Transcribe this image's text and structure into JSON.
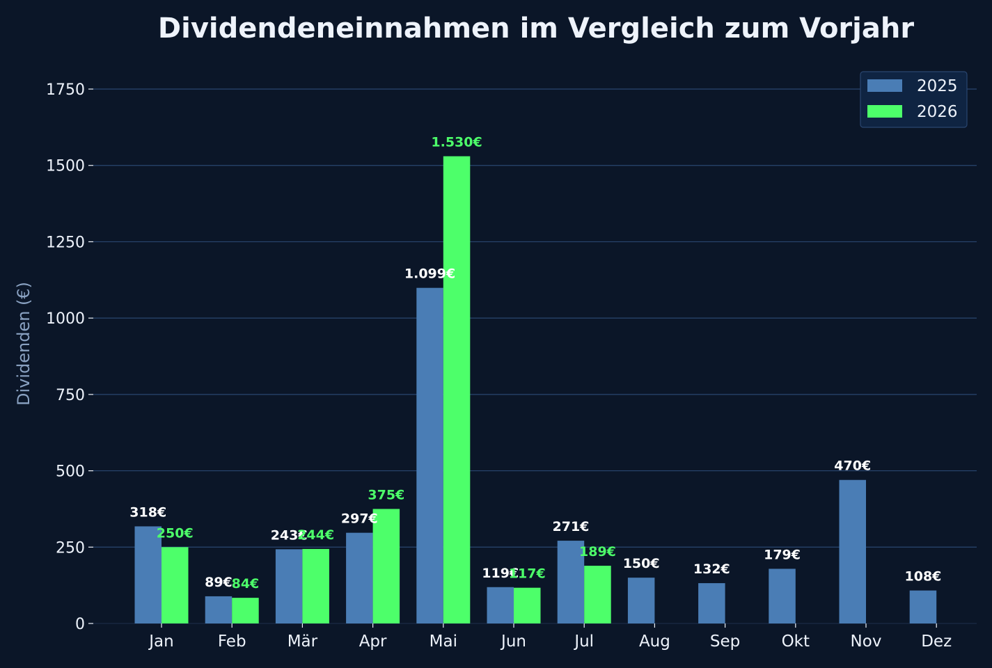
{
  "chart_data": {
    "type": "bar",
    "title": "Dividendeneinnahmen im Vergleich zum Vorjahr",
    "xlabel": "",
    "ylabel": "Dividenden (€)",
    "ylim": [
      0,
      1850
    ],
    "yticks": [
      0,
      250,
      500,
      750,
      1000,
      1250,
      1500,
      1750
    ],
    "grid": "horizontal",
    "legend_position": "top-right",
    "categories": [
      "Jan",
      "Feb",
      "Mär",
      "Apr",
      "Mai",
      "Jun",
      "Jul",
      "Aug",
      "Sep",
      "Okt",
      "Nov",
      "Dez"
    ],
    "series": [
      {
        "name": "2025",
        "color": "#4a7db5",
        "label_color": "#ffffff",
        "values": [
          318,
          89,
          243,
          297,
          1099,
          119,
          271,
          150,
          132,
          179,
          470,
          108
        ],
        "labels": [
          "318€",
          "89€",
          "243€",
          "297€",
          "1.099€",
          "119€",
          "271€",
          "150€",
          "132€",
          "179€",
          "470€",
          "108€"
        ]
      },
      {
        "name": "2026",
        "color": "#4dff6a",
        "label_color": "#4dff6a",
        "values": [
          250,
          84,
          244,
          375,
          1530,
          117,
          189,
          null,
          null,
          null,
          null,
          null
        ],
        "labels": [
          "250€",
          "84€",
          "244€",
          "375€",
          "1.530€",
          "117€",
          "189€",
          null,
          null,
          null,
          null,
          null
        ]
      }
    ]
  },
  "colors": {
    "background": "#0b1628",
    "grid": "#2a4670",
    "text": "#eef3fb",
    "axis_label": "#8aa2c2",
    "legend_bg": "#0f2442",
    "legend_border": "#2a4670"
  }
}
